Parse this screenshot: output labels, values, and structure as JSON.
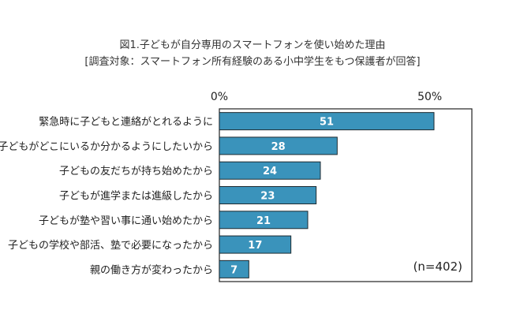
{
  "chart_data": {
    "type": "bar",
    "orientation": "horizontal",
    "title": "図1.子どもが自分専用のスマートフォンを使い始めた理由",
    "subtitle": "[調査対象：スマートフォン所有経験のある小中学生をもつ保護者が回答]",
    "categories": [
      "緊急時に子どもと連絡がとれるように",
      "子どもがどこにいるか分かるようにしたいから",
      "子どもの友だちが持ち始めたから",
      "子どもが進学または進級したから",
      "子どもが塾や習い事に通い始めたから",
      "子どもの学校や部活、塾で必要になったから",
      "親の働き方が変わったから"
    ],
    "values": [
      51,
      28,
      24,
      23,
      21,
      17,
      7
    ],
    "axis_ticks": [
      {
        "value": 0,
        "label": "0%"
      },
      {
        "value": 50,
        "label": "50%"
      }
    ],
    "xlim": [
      0,
      60
    ],
    "note": "(n=402)",
    "bar_color": "#3a93bb",
    "grid": false,
    "legend": "none"
  }
}
